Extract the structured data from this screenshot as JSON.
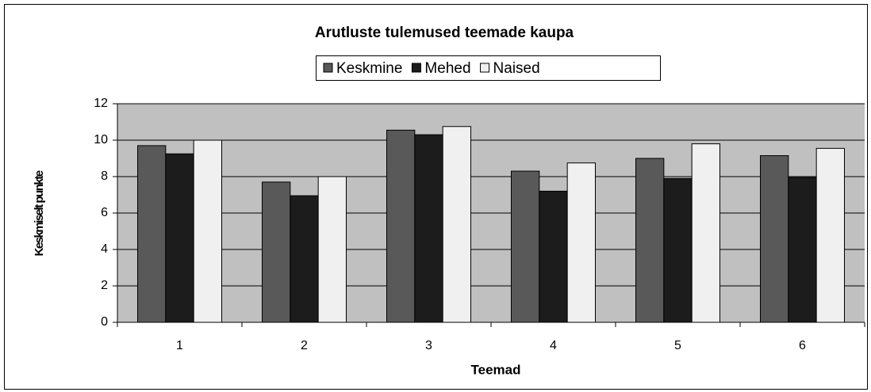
{
  "chart_data": {
    "type": "bar",
    "title": "Arutluste tulemused teemade kaupa",
    "x_label": "Teemad",
    "y_label": "Keskmiselt punkte",
    "categories": [
      "1",
      "2",
      "3",
      "4",
      "5",
      "6"
    ],
    "series": [
      {
        "name": "Keskmine",
        "color": "#595959",
        "values": [
          9.7,
          7.7,
          10.55,
          8.3,
          9.0,
          9.15
        ]
      },
      {
        "name": "Mehed",
        "color": "#1c1c1c",
        "values": [
          9.25,
          6.95,
          10.3,
          7.2,
          7.9,
          7.95
        ]
      },
      {
        "name": "Naised",
        "color": "#f0f0f0",
        "values": [
          10.0,
          8.0,
          10.75,
          8.75,
          9.8,
          9.55
        ]
      }
    ],
    "ylim": [
      0,
      12
    ],
    "yticks": [
      0,
      2,
      4,
      6,
      8,
      10,
      12
    ],
    "grid": true,
    "legend": "top"
  }
}
